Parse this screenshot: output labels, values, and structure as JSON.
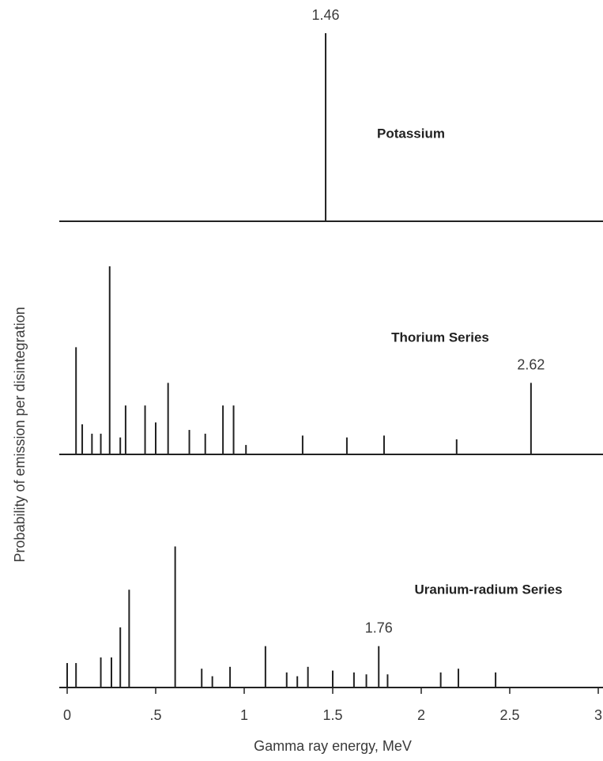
{
  "chart_data": [
    {
      "type": "stem",
      "title": "Potassium",
      "ylim": [
        0,
        100
      ],
      "x": [
        1.46
      ],
      "values": [
        100
      ],
      "annotations": [
        {
          "x": 1.46
        }
      ]
    },
    {
      "type": "stem",
      "title": "Thorium Series",
      "ylim": [
        0,
        100
      ],
      "ylabel": "Probability of emission per disintegration",
      "x": [
        0.05,
        0.085,
        0.14,
        0.19,
        0.24,
        0.3,
        0.33,
        0.44,
        0.5,
        0.57,
        0.69,
        0.78,
        0.88,
        0.94,
        1.01,
        1.33,
        1.58,
        1.79,
        2.2,
        2.62
      ],
      "values": [
        57,
        16,
        11,
        11,
        100,
        9,
        26,
        26,
        17,
        38,
        13,
        11,
        26,
        26,
        5,
        10,
        9,
        10,
        8,
        38
      ],
      "annotations": [
        {
          "x": 2.62
        }
      ]
    },
    {
      "type": "stem",
      "title": "Uranium-radium Series",
      "ylim": [
        0,
        100
      ],
      "xlabel": "Gamma ray energy, MeV",
      "xlim": [
        0,
        3
      ],
      "xticks": [
        0,
        {
          "value": 0.5,
          "label": ".5"
        },
        1,
        1.5,
        2,
        2.5,
        3
      ],
      "x": [
        0.0,
        0.05,
        0.19,
        0.25,
        0.3,
        0.35,
        0.61,
        0.76,
        0.82,
        0.92,
        1.12,
        1.24,
        1.3,
        1.36,
        1.5,
        1.62,
        1.69,
        1.76,
        1.81,
        2.11,
        2.21,
        2.42
      ],
      "values": [
        13,
        13,
        16,
        16,
        32,
        52,
        75,
        10,
        6,
        11,
        22,
        8,
        6,
        11,
        9,
        8,
        7,
        22,
        7,
        8,
        10,
        8
      ],
      "annotations": [
        {
          "x": 1.76
        }
      ]
    }
  ]
}
